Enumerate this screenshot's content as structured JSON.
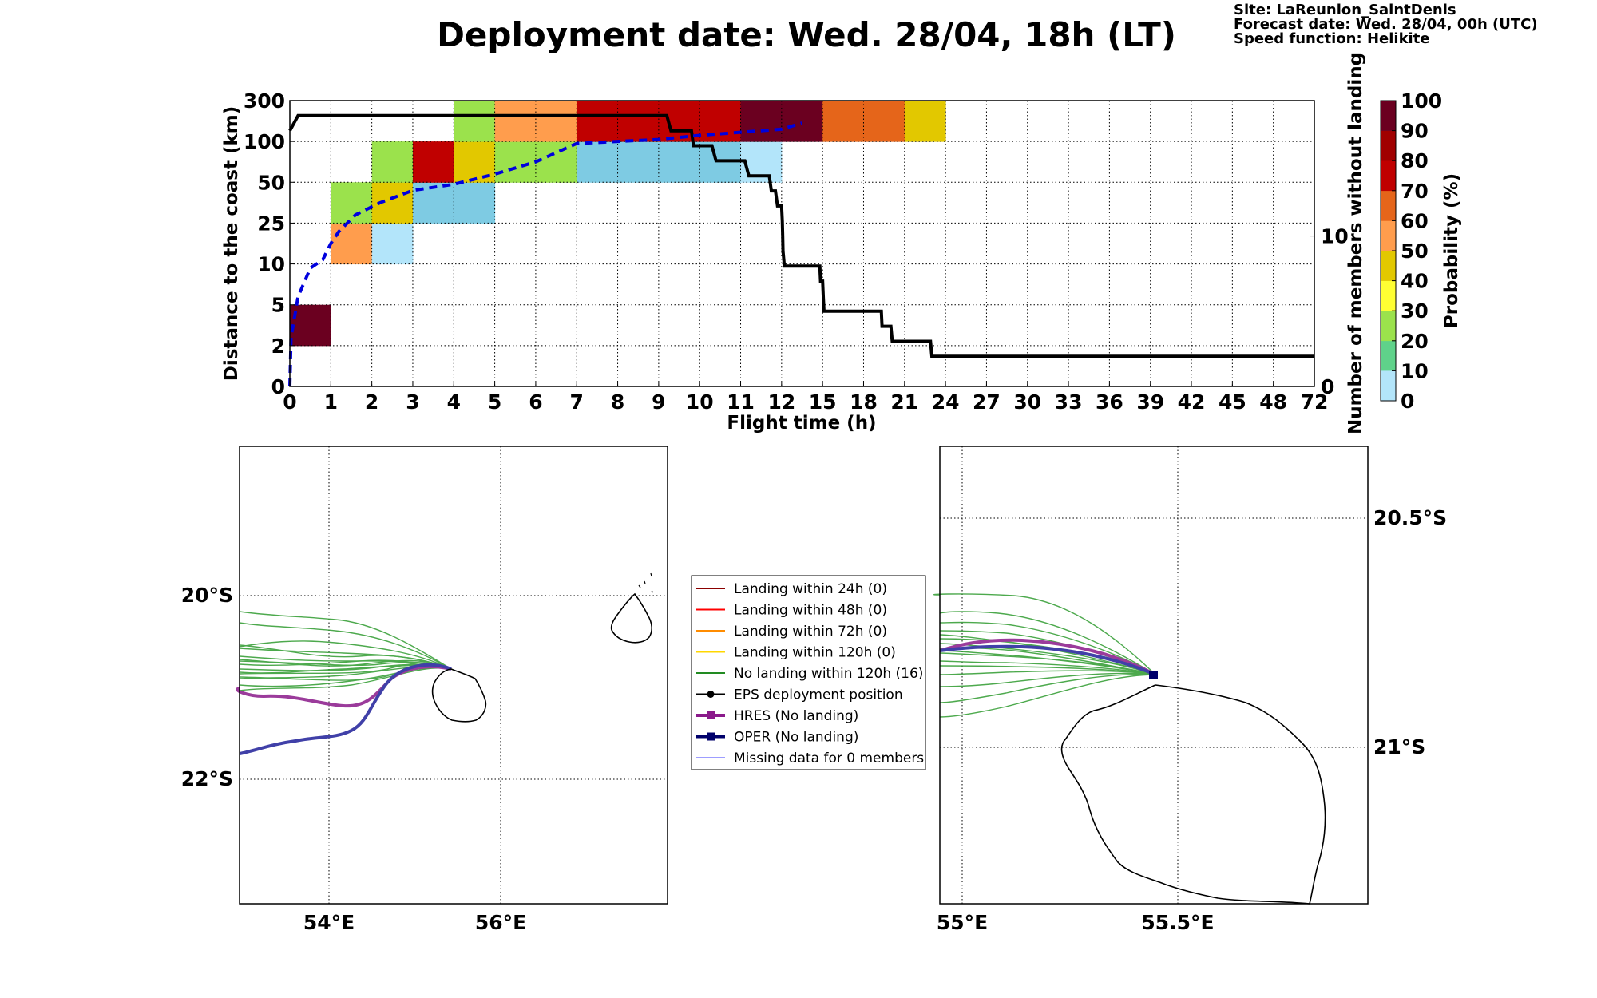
{
  "title": "Deployment date: Wed. 28/04, 18h (LT)",
  "info": {
    "site": "Site: LaReunion_SaintDenis",
    "forecast": "Forecast date: Wed. 28/04, 00h (UTC)",
    "speed": "Speed function: Helikite"
  },
  "colorbar": {
    "label": "Probability (%)",
    "ticks": [
      "0",
      "10",
      "20",
      "30",
      "40",
      "50",
      "60",
      "70",
      "80",
      "90",
      "100"
    ],
    "colors": [
      "#b3e5fa",
      "#7ecbe3",
      "#5fd28a",
      "#9be24c",
      "#ffff33",
      "#e2c800",
      "#ff9d4d",
      "#e5651a",
      "#c00000",
      "#a00000",
      "#6b0020"
    ]
  },
  "chart_data": [
    {
      "type": "heatmap",
      "xlabel": "Flight time (h)",
      "ylabel": "Distance to the coast (km)",
      "y2label": "Number of members without landing",
      "x_ticks": [
        "0",
        "1",
        "2",
        "3",
        "4",
        "5",
        "6",
        "7",
        "8",
        "9",
        "10",
        "11",
        "12",
        "15",
        "18",
        "21",
        "24",
        "27",
        "30",
        "33",
        "36",
        "39",
        "42",
        "45",
        "48",
        "72"
      ],
      "y_ticks": [
        "0",
        "2",
        "5",
        "10",
        "25",
        "50",
        "100",
        "300"
      ],
      "y2_ticks": [
        {
          "value": 0,
          "label": "0"
        },
        {
          "value": 10,
          "label": "10"
        }
      ],
      "y2_range": [
        0,
        19
      ],
      "grid": true,
      "cells": [
        {
          "x": 0,
          "y": 1,
          "p": 100
        },
        {
          "x": 1,
          "y": 3,
          "p": 60
        },
        {
          "x": 1,
          "y": 4,
          "p": 30
        },
        {
          "x": 2,
          "y": 3,
          "p": 0
        },
        {
          "x": 2,
          "y": 4,
          "p": 50
        },
        {
          "x": 2,
          "y": 5,
          "p": 30
        },
        {
          "x": 3,
          "y": 4,
          "p": 10
        },
        {
          "x": 3,
          "y": 5,
          "p": 80
        },
        {
          "x": 4,
          "y": 4,
          "p": 10
        },
        {
          "x": 4,
          "y": 5,
          "p": 50
        },
        {
          "x": 4,
          "y": 6,
          "p": 30
        },
        {
          "x": 5,
          "y": 5,
          "p": 30
        },
        {
          "x": 5,
          "y": 6,
          "p": 60
        },
        {
          "x": 6,
          "y": 5,
          "p": 30
        },
        {
          "x": 6,
          "y": 6,
          "p": 60
        },
        {
          "x": 7,
          "y": 5,
          "p": 10
        },
        {
          "x": 7,
          "y": 6,
          "p": 80
        },
        {
          "x": 8,
          "y": 5,
          "p": 10
        },
        {
          "x": 8,
          "y": 6,
          "p": 80
        },
        {
          "x": 9,
          "y": 5,
          "p": 10
        },
        {
          "x": 9,
          "y": 6,
          "p": 80
        },
        {
          "x": 10,
          "y": 5,
          "p": 10
        },
        {
          "x": 10,
          "y": 6,
          "p": 80
        },
        {
          "x": 11,
          "y": 5,
          "p": 0
        },
        {
          "x": 11,
          "y": 6,
          "p": 100
        },
        {
          "x": 12,
          "y": 6,
          "p": 100
        },
        {
          "x": 13,
          "y": 6,
          "p": 70
        },
        {
          "x": 14,
          "y": 6,
          "p": 70
        },
        {
          "x": 15,
          "y": 6,
          "p": 50
        }
      ],
      "series": [
        {
          "name": "Number of members without landing",
          "style": "solid-step",
          "color": "#000000",
          "points": [
            [
              0,
              17
            ],
            [
              0.2,
              18
            ],
            [
              9.2,
              18
            ],
            [
              9.3,
              17
            ],
            [
              9.8,
              17
            ],
            [
              9.85,
              16
            ],
            [
              10.3,
              16
            ],
            [
              10.4,
              15
            ],
            [
              11.1,
              15
            ],
            [
              11.2,
              14
            ],
            [
              11.7,
              14
            ],
            [
              11.75,
              13
            ],
            [
              11.85,
              13
            ],
            [
              11.9,
              12
            ],
            [
              12.0,
              12
            ],
            [
              12.05,
              11
            ],
            [
              12.08,
              10
            ],
            [
              12.1,
              9
            ],
            [
              12.2,
              8
            ],
            [
              14.8,
              8
            ],
            [
              14.85,
              7
            ],
            [
              15.0,
              7
            ],
            [
              15.05,
              6
            ],
            [
              15.1,
              5
            ],
            [
              19.3,
              5
            ],
            [
              19.35,
              4
            ],
            [
              20.0,
              4
            ],
            [
              20.1,
              3
            ],
            [
              22.9,
              3
            ],
            [
              23.0,
              2
            ],
            [
              72,
              2
            ]
          ]
        },
        {
          "name": "",
          "style": "dashed",
          "color": "#0000dd",
          "points": [
            [
              0,
              0
            ],
            [
              0.03,
              1.2
            ],
            [
              0.2,
              2.2
            ],
            [
              0.5,
              2.9
            ],
            [
              0.8,
              3.1
            ],
            [
              1.0,
              3.5
            ],
            [
              1.2,
              3.8
            ],
            [
              1.6,
              4.2
            ],
            [
              2.2,
              4.5
            ],
            [
              3.0,
              4.8
            ],
            [
              4.0,
              4.95
            ],
            [
              5.0,
              5.2
            ],
            [
              6.0,
              5.5
            ],
            [
              7.0,
              5.95
            ],
            [
              9.0,
              6.05
            ],
            [
              10.0,
              6.15
            ],
            [
              12.0,
              6.3
            ],
            [
              13.5,
              6.45
            ]
          ]
        }
      ]
    },
    {
      "type": "map",
      "x_ticks": [
        "54°E",
        "56°E"
      ],
      "y_ticks": [
        "20°S",
        "22°S"
      ],
      "lon_range": [
        53,
        58
      ],
      "lat_range": [
        -23.4,
        -18.4
      ]
    },
    {
      "type": "map",
      "x_ticks": [
        "55°E",
        "55.5°E"
      ],
      "y_ticks": [
        "20.5°S",
        "21°S"
      ],
      "lon_range": [
        54.95,
        55.88
      ],
      "lat_range": [
        -21.7,
        -20.35
      ]
    }
  ],
  "legend": [
    {
      "label": "Landing within 24h (0)",
      "color": "#8b0000",
      "marker": "none",
      "lw": 2
    },
    {
      "label": "Landing within 48h (0)",
      "color": "#ff0000",
      "marker": "none",
      "lw": 2
    },
    {
      "label": "Landing within 72h (0)",
      "color": "#ff8c00",
      "marker": "none",
      "lw": 2
    },
    {
      "label": "Landing within 120h (0)",
      "color": "#ffd700",
      "marker": "none",
      "lw": 2
    },
    {
      "label": "No landing within 120h (16)",
      "color": "#228b22",
      "marker": "none",
      "lw": 2
    },
    {
      "label": "EPS deployment position",
      "color": "#000000",
      "marker": "circle",
      "lw": 2
    },
    {
      "label": "HRES (No landing)",
      "color": "#8b1a8b",
      "marker": "square",
      "lw": 4
    },
    {
      "label": "OPER (No landing)",
      "color": "#00006b",
      "marker": "square",
      "lw": 4
    },
    {
      "label": "Missing data for 0 members",
      "color": "#3b3bff",
      "marker": "none",
      "lw": 1
    }
  ]
}
